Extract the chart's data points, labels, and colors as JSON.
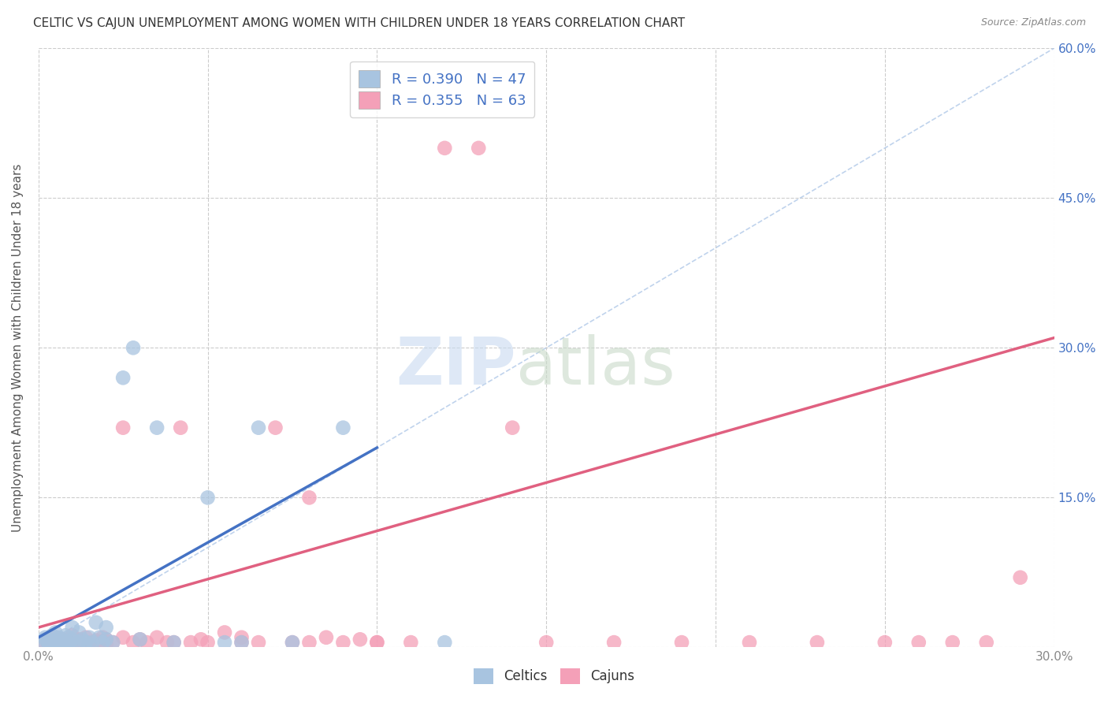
{
  "title": "CELTIC VS CAJUN UNEMPLOYMENT AMONG WOMEN WITH CHILDREN UNDER 18 YEARS CORRELATION CHART",
  "source": "Source: ZipAtlas.com",
  "ylabel": "Unemployment Among Women with Children Under 18 years",
  "x_min": 0.0,
  "x_max": 0.3,
  "y_min": 0.0,
  "y_max": 0.6,
  "x_ticks": [
    0.0,
    0.05,
    0.1,
    0.15,
    0.2,
    0.25,
    0.3
  ],
  "x_tick_labels": [
    "0.0%",
    "",
    "",
    "",
    "",
    "",
    "30.0%"
  ],
  "y_ticks": [
    0.0,
    0.15,
    0.3,
    0.45,
    0.6
  ],
  "y_tick_labels_right": [
    "",
    "15.0%",
    "30.0%",
    "45.0%",
    "60.0%"
  ],
  "celtics_R": 0.39,
  "celtics_N": 47,
  "cajuns_R": 0.355,
  "cajuns_N": 63,
  "celtics_color": "#a8c4e0",
  "cajuns_color": "#f4a0b8",
  "celtics_line_color": "#4472c4",
  "cajuns_line_color": "#e06080",
  "diagonal_color": "#b0c8e8",
  "celtics_x": [
    0.002,
    0.002,
    0.002,
    0.003,
    0.003,
    0.004,
    0.004,
    0.005,
    0.005,
    0.005,
    0.006,
    0.006,
    0.007,
    0.007,
    0.008,
    0.008,
    0.008,
    0.009,
    0.009,
    0.01,
    0.01,
    0.01,
    0.012,
    0.012,
    0.013,
    0.014,
    0.015,
    0.015,
    0.016,
    0.017,
    0.018,
    0.019,
    0.02,
    0.02,
    0.022,
    0.025,
    0.028,
    0.03,
    0.035,
    0.04,
    0.05,
    0.055,
    0.06,
    0.065,
    0.075,
    0.09,
    0.12
  ],
  "celtics_y": [
    0.005,
    0.008,
    0.01,
    0.003,
    0.007,
    0.005,
    0.012,
    0.003,
    0.007,
    0.015,
    0.003,
    0.01,
    0.005,
    0.008,
    0.003,
    0.006,
    0.012,
    0.005,
    0.01,
    0.003,
    0.008,
    0.02,
    0.005,
    0.015,
    0.008,
    0.005,
    0.003,
    0.01,
    0.005,
    0.025,
    0.01,
    0.005,
    0.008,
    0.02,
    0.005,
    0.27,
    0.3,
    0.008,
    0.22,
    0.005,
    0.15,
    0.005,
    0.005,
    0.22,
    0.005,
    0.22,
    0.005
  ],
  "cajuns_x": [
    0.002,
    0.003,
    0.004,
    0.005,
    0.005,
    0.006,
    0.007,
    0.007,
    0.008,
    0.009,
    0.01,
    0.01,
    0.011,
    0.012,
    0.013,
    0.014,
    0.015,
    0.016,
    0.017,
    0.018,
    0.019,
    0.02,
    0.02,
    0.022,
    0.025,
    0.025,
    0.028,
    0.03,
    0.032,
    0.035,
    0.038,
    0.04,
    0.042,
    0.045,
    0.048,
    0.05,
    0.055,
    0.06,
    0.065,
    0.07,
    0.075,
    0.08,
    0.085,
    0.09,
    0.095,
    0.1,
    0.11,
    0.12,
    0.13,
    0.14,
    0.15,
    0.17,
    0.19,
    0.21,
    0.23,
    0.25,
    0.26,
    0.27,
    0.28,
    0.29,
    0.1,
    0.08,
    0.06
  ],
  "cajuns_y": [
    0.005,
    0.003,
    0.007,
    0.003,
    0.01,
    0.005,
    0.003,
    0.008,
    0.005,
    0.003,
    0.005,
    0.012,
    0.003,
    0.008,
    0.005,
    0.01,
    0.005,
    0.003,
    0.007,
    0.005,
    0.01,
    0.003,
    0.008,
    0.005,
    0.22,
    0.01,
    0.005,
    0.008,
    0.005,
    0.01,
    0.005,
    0.005,
    0.22,
    0.005,
    0.008,
    0.005,
    0.015,
    0.01,
    0.005,
    0.22,
    0.005,
    0.005,
    0.01,
    0.005,
    0.008,
    0.005,
    0.005,
    0.5,
    0.5,
    0.22,
    0.005,
    0.005,
    0.005,
    0.005,
    0.005,
    0.005,
    0.005,
    0.005,
    0.005,
    0.07,
    0.005,
    0.15,
    0.005
  ],
  "celtics_line_x0": 0.0,
  "celtics_line_y0": 0.01,
  "celtics_line_x1": 0.1,
  "celtics_line_y1": 0.2,
  "cajuns_line_x0": 0.0,
  "cajuns_line_y0": 0.02,
  "cajuns_line_x1": 0.3,
  "cajuns_line_y1": 0.31
}
